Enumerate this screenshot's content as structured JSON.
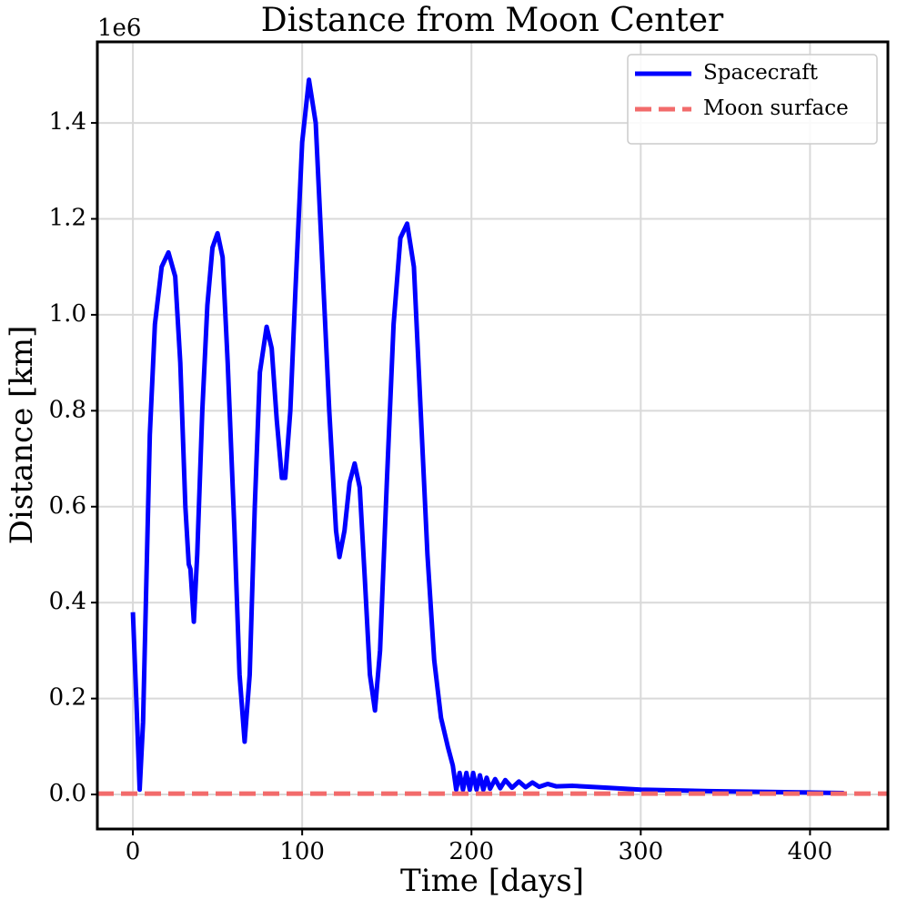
{
  "chart_data": {
    "type": "line",
    "title": "Distance from Moon Center",
    "x_label": "Time [days]",
    "y_label": "Distance [km]",
    "y_offset_label": "1e6",
    "xlim": [
      -21,
      446
    ],
    "ylim": [
      -0.072,
      1.569
    ],
    "xticks": [
      0,
      100,
      200,
      300,
      400
    ],
    "yticks": [
      {
        "value": 0,
        "label": "0.0"
      },
      0.2,
      0.4,
      0.6,
      0.8,
      {
        "value": 1,
        "label": "1.0"
      },
      1.2,
      1.4
    ],
    "grid": true,
    "legend": "upper right",
    "series": [
      {
        "name": "Spacecraft",
        "color": "#0000ff",
        "x": [
          0,
          2,
          4,
          6,
          8,
          10,
          13,
          17,
          21,
          25,
          28,
          31,
          33,
          34,
          36,
          38,
          41,
          44,
          47,
          50,
          53,
          56,
          60,
          63,
          66,
          69,
          72,
          75,
          79,
          82,
          85,
          88,
          90,
          93,
          96,
          100,
          104,
          108,
          112,
          116,
          120,
          122,
          125,
          128,
          131,
          134,
          137,
          140,
          143,
          146,
          150,
          154,
          158,
          162,
          166,
          170,
          174,
          178,
          182,
          186,
          189,
          191,
          193,
          195,
          197,
          199,
          201,
          203,
          205,
          207,
          209,
          211,
          214,
          217,
          220,
          224,
          228,
          232,
          236,
          240,
          245,
          250,
          260,
          280,
          300,
          340,
          380,
          420
        ],
        "values": [
          0.38,
          0.2,
          0.01,
          0.15,
          0.45,
          0.75,
          0.98,
          1.1,
          1.13,
          1.08,
          0.9,
          0.6,
          0.48,
          0.47,
          0.36,
          0.5,
          0.8,
          1.02,
          1.14,
          1.17,
          1.12,
          0.9,
          0.55,
          0.25,
          0.11,
          0.25,
          0.6,
          0.88,
          0.975,
          0.93,
          0.78,
          0.66,
          0.66,
          0.8,
          1.05,
          1.36,
          1.49,
          1.4,
          1.1,
          0.8,
          0.55,
          0.495,
          0.55,
          0.65,
          0.69,
          0.64,
          0.45,
          0.25,
          0.175,
          0.3,
          0.65,
          0.98,
          1.16,
          1.19,
          1.1,
          0.8,
          0.5,
          0.28,
          0.16,
          0.1,
          0.06,
          0.01,
          0.045,
          0.01,
          0.045,
          0.01,
          0.045,
          0.01,
          0.04,
          0.01,
          0.035,
          0.012,
          0.032,
          0.013,
          0.03,
          0.014,
          0.027,
          0.015,
          0.025,
          0.016,
          0.022,
          0.017,
          0.018,
          0.014,
          0.01,
          0.007,
          0.005,
          0.003
        ]
      }
    ],
    "hlines": [
      {
        "name": "Moon surface",
        "color": "#f26b6b",
        "value": 0.0017
      }
    ]
  }
}
